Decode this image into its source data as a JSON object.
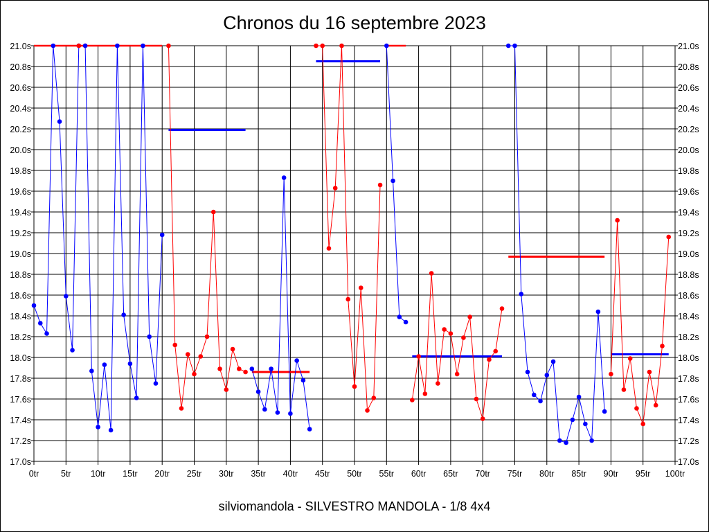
{
  "chart_data": {
    "type": "line",
    "title": "Chronos du 16 septembre 2023",
    "subtitle": "silviomandola - SILVESTRO MANDOLA - 1/8 4x4",
    "xlabel": "",
    "ylabel": "",
    "xlim": [
      0,
      100
    ],
    "ylim": [
      17.0,
      21.0
    ],
    "x_tick_labels": [
      "0tr",
      "5tr",
      "10tr",
      "15tr",
      "20tr",
      "25tr",
      "30tr",
      "35tr",
      "40tr",
      "45tr",
      "50tr",
      "55tr",
      "60tr",
      "65tr",
      "70tr",
      "75tr",
      "80tr",
      "85tr",
      "90tr",
      "95tr",
      "100tr"
    ],
    "y_tick_labels": [
      "17.0s",
      "17.2s",
      "17.4s",
      "17.6s",
      "17.8s",
      "18.0s",
      "18.2s",
      "18.4s",
      "18.6s",
      "18.8s",
      "19.0s",
      "19.2s",
      "19.4s",
      "19.6s",
      "19.8s",
      "20.0s",
      "20.2s",
      "20.4s",
      "20.6s",
      "20.8s",
      "21.0s"
    ],
    "grid": true,
    "legend": "none",
    "colors": {
      "blue": "#0000ff",
      "red": "#ff0000",
      "grid": "#000000"
    },
    "series": [
      {
        "color": "blue",
        "x": [
          0,
          1,
          2,
          3,
          4,
          5,
          6,
          7
        ],
        "y": [
          18.5,
          18.33,
          18.23,
          21.0,
          20.27,
          18.59,
          18.07,
          21.0
        ]
      },
      {
        "color": "red",
        "x": [
          7,
          8
        ],
        "y": [
          21.0,
          21.0
        ]
      },
      {
        "color": "blue",
        "x": [
          8,
          9,
          10,
          11,
          12,
          13,
          14,
          15,
          16,
          17,
          18,
          19,
          20
        ],
        "y": [
          21.0,
          17.87,
          17.33,
          17.93,
          17.3,
          21.0,
          18.41,
          17.94,
          17.61,
          21.0,
          18.2,
          17.75,
          19.18
        ]
      },
      {
        "color": "red",
        "x": [
          21,
          22,
          23,
          24,
          25,
          26,
          27,
          28,
          29,
          30,
          31,
          32,
          33
        ],
        "y": [
          21.0,
          18.12,
          17.51,
          18.03,
          17.84,
          18.01,
          18.2,
          19.4,
          17.89,
          17.69,
          18.08,
          17.89,
          17.86
        ]
      },
      {
        "color": "blue",
        "x": [
          34,
          35,
          36,
          37,
          38,
          39,
          40,
          41,
          42,
          43
        ],
        "y": [
          17.89,
          17.67,
          17.5,
          17.89,
          17.47,
          19.73,
          17.46,
          17.97,
          17.78,
          17.31
        ]
      },
      {
        "color": "red",
        "x": [
          44,
          45,
          46,
          47,
          48,
          49,
          50,
          51,
          52,
          53,
          54
        ],
        "y": [
          21.0,
          21.0,
          19.05,
          19.63,
          21.0,
          18.56,
          17.72,
          18.67,
          17.49,
          17.61,
          19.66
        ]
      },
      {
        "color": "blue",
        "x": [
          55,
          56,
          57,
          58
        ],
        "y": [
          21.0,
          19.7,
          18.39,
          18.34
        ]
      },
      {
        "color": "red",
        "x": [
          59,
          60,
          61,
          62,
          63,
          64,
          65,
          66,
          67,
          68,
          69,
          70,
          71,
          72,
          73
        ],
        "y": [
          17.59,
          18.01,
          17.65,
          18.81,
          17.75,
          18.27,
          18.23,
          17.84,
          18.19,
          18.39,
          17.6,
          17.41,
          17.98,
          18.06,
          18.47
        ]
      },
      {
        "color": "blue",
        "x": [
          74,
          75,
          76,
          77,
          78,
          79,
          80,
          81,
          82,
          83,
          84,
          85,
          86,
          87,
          88,
          89
        ],
        "y": [
          21.0,
          21.0,
          18.61,
          17.86,
          17.64,
          17.58,
          17.83,
          17.96,
          17.2,
          17.18,
          17.4,
          17.62,
          17.36,
          17.2,
          18.44,
          17.48
        ]
      },
      {
        "color": "red",
        "x": [
          90,
          91,
          92,
          93,
          94,
          95,
          96,
          97,
          98,
          99
        ],
        "y": [
          17.84,
          19.32,
          17.69,
          17.99,
          17.51,
          17.36,
          17.86,
          17.54,
          18.11,
          19.16
        ]
      }
    ],
    "capped_lines": [
      {
        "color": "red",
        "x": [
          0,
          20
        ],
        "y": 21.0
      },
      {
        "color": "red",
        "x": [
          55,
          58
        ],
        "y": 21.0
      }
    ],
    "average_lines": [
      {
        "color": "blue",
        "x": [
          21,
          33
        ],
        "y": 20.19
      },
      {
        "color": "red",
        "x": [
          34,
          43
        ],
        "y": 17.86
      },
      {
        "color": "blue",
        "x": [
          44,
          54
        ],
        "y": 20.85
      },
      {
        "color": "blue",
        "x": [
          59,
          73
        ],
        "y": 18.01
      },
      {
        "color": "red",
        "x": [
          74,
          89
        ],
        "y": 18.97
      },
      {
        "color": "blue",
        "x": [
          90,
          99
        ],
        "y": 18.03
      }
    ]
  }
}
